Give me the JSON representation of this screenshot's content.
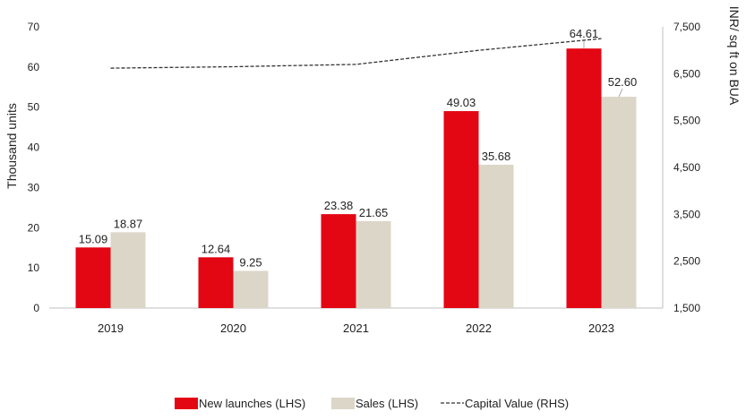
{
  "chart_data": {
    "type": "bar",
    "categories": [
      "2019",
      "2020",
      "2021",
      "2022",
      "2023"
    ],
    "series": [
      {
        "name": "New launches (LHS)",
        "values": [
          15.09,
          12.64,
          23.38,
          49.03,
          64.61
        ],
        "labels": [
          "15.09",
          "12.64",
          "23.38",
          "49.03",
          "64.61"
        ],
        "color": "#e30613",
        "axis": "left"
      },
      {
        "name": "Sales (LHS)",
        "values": [
          18.87,
          9.25,
          21.65,
          35.68,
          52.6
        ],
        "labels": [
          "18.87",
          "9.25",
          "21.65",
          "35.68",
          "52.60"
        ],
        "color": "#dcd6c8",
        "axis": "left"
      }
    ],
    "line_series": {
      "name": "Capital Value (RHS)",
      "values": [
        6620,
        6650,
        6700,
        7000,
        7250
      ],
      "color": "#333333",
      "style": "dashed",
      "axis": "right"
    },
    "ylabel": "Thousand units",
    "ylabel_right": "INR/ sq ft on BUA",
    "ylim": [
      0,
      70
    ],
    "yticks": [
      "0",
      "10",
      "20",
      "30",
      "40",
      "50",
      "60",
      "70"
    ],
    "ylim_right": [
      1500,
      7500
    ],
    "yticks_right": [
      "1,500",
      "2,500",
      "3,500",
      "4,500",
      "5,500",
      "6,500",
      "7,500"
    ],
    "legend": [
      "New launches (LHS)",
      "Sales (LHS)",
      "Capital Value (RHS)"
    ],
    "legend_position": "bottom"
  }
}
